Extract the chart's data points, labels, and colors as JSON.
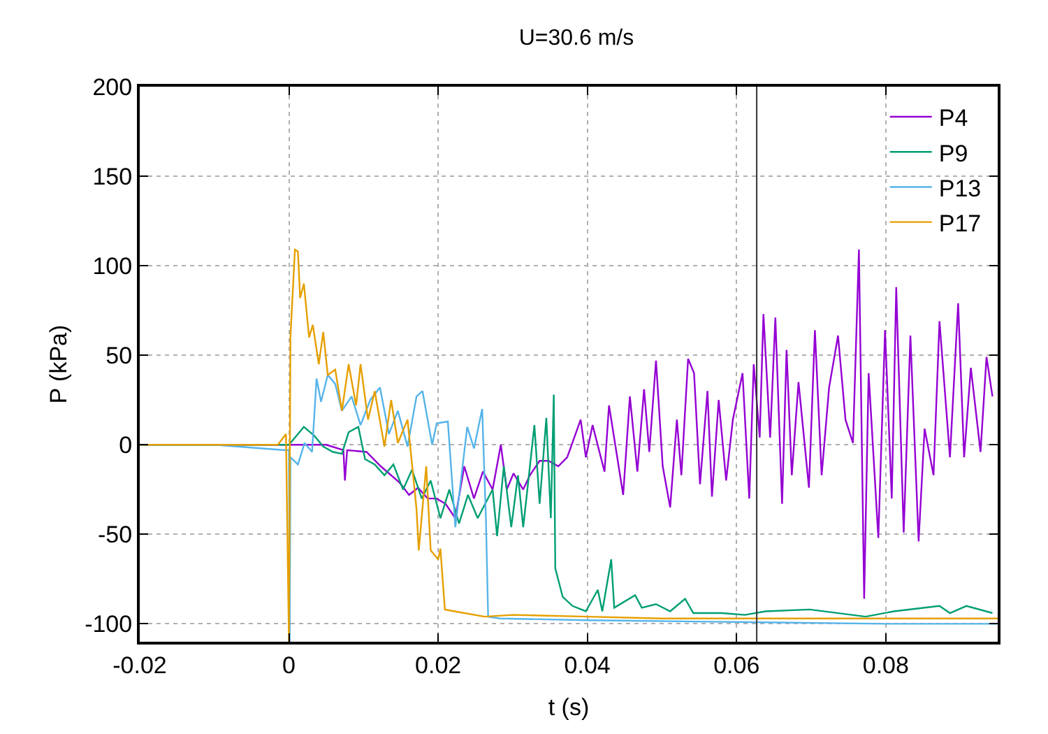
{
  "chart_data": {
    "type": "line",
    "title": "U=30.6 m/s",
    "xlabel": "t (s)",
    "ylabel": "P (kPa)",
    "xlim": [
      -0.02,
      0.095
    ],
    "xticks": [
      -0.02,
      0,
      0.02,
      0.04,
      0.06,
      0.08
    ],
    "ylim": [
      -110,
      200
    ],
    "yticks": [
      -100,
      -50,
      0,
      50,
      100,
      150,
      200
    ],
    "grid": true,
    "legend": "top right",
    "line_style": "solid",
    "ref_lines": [
      {
        "axis": "x",
        "value": 0.0627,
        "color": "#333333"
      }
    ],
    "series": [
      {
        "name": "P4",
        "color": "#9400d3",
        "x": [
          -0.02,
          -0.01,
          0,
          0.005,
          0.0073,
          0.0075,
          0.0078,
          0.0104,
          0.0123,
          0.0148,
          0.0161,
          0.0173,
          0.0186,
          0.0198,
          0.021,
          0.0223,
          0.0235,
          0.0248,
          0.026,
          0.0273,
          0.0284,
          0.0292,
          0.0301,
          0.0314,
          0.0323,
          0.0336,
          0.0348,
          0.0361,
          0.0373,
          0.0391,
          0.0398,
          0.0407,
          0.0423,
          0.0429,
          0.0448,
          0.0457,
          0.0467,
          0.0476,
          0.0483,
          0.0492,
          0.0501,
          0.0511,
          0.052,
          0.0526,
          0.0535,
          0.0543,
          0.0551,
          0.0561,
          0.0567,
          0.0576,
          0.0586,
          0.0595,
          0.0608,
          0.0617,
          0.0623,
          0.0631,
          0.0636,
          0.0645,
          0.0652,
          0.0661,
          0.0667,
          0.0674,
          0.0683,
          0.0697,
          0.0705,
          0.0714,
          0.0724,
          0.0736,
          0.0746,
          0.0756,
          0.0764,
          0.0771,
          0.0777,
          0.079,
          0.0799,
          0.0808,
          0.0814,
          0.0824,
          0.0833,
          0.0844,
          0.0852,
          0.0864,
          0.0872,
          0.0886,
          0.0897,
          0.0905,
          0.0914,
          0.0927,
          0.0935,
          0.0943
        ],
        "values": [
          0,
          0,
          0,
          0,
          -3,
          -20,
          -3,
          -4,
          -12,
          -21,
          -28,
          -24,
          -30,
          -30,
          -33,
          -41,
          -12,
          -30,
          -15,
          -25,
          0,
          -25,
          -16,
          -25,
          -17,
          -9,
          -9,
          -12,
          -7,
          14,
          -7,
          11,
          -15,
          22,
          -28,
          27,
          -15,
          31,
          -4,
          47,
          -12,
          -35,
          14,
          -17,
          48,
          40,
          -22,
          30,
          -29,
          25,
          -20,
          14,
          40,
          -30,
          45,
          4,
          73,
          4,
          71,
          -33,
          53,
          -17,
          35,
          -24,
          64,
          -17,
          32,
          61,
          14,
          1,
          109,
          -86,
          40,
          -52,
          64,
          -30,
          88,
          -49,
          61,
          -54,
          9,
          -17,
          69,
          -7,
          79,
          -7,
          43,
          -4,
          49,
          27
        ]
      },
      {
        "name": "P9",
        "color": "#009e73",
        "x": [
          -0.02,
          -0.01,
          0,
          0.0002,
          0.002,
          0.0034,
          0.0046,
          0.0059,
          0.0071,
          0.008,
          0.0093,
          0.0102,
          0.0115,
          0.0128,
          0.014,
          0.0153,
          0.0165,
          0.0178,
          0.019,
          0.0203,
          0.0215,
          0.0228,
          0.024,
          0.0253,
          0.0273,
          0.0279,
          0.0288,
          0.0298,
          0.0307,
          0.0314,
          0.0323,
          0.0329,
          0.0336,
          0.0345,
          0.0351,
          0.0355,
          0.0357,
          0.0367,
          0.038,
          0.0398,
          0.0414,
          0.042,
          0.0432,
          0.0436,
          0.0464,
          0.0473,
          0.0492,
          0.0511,
          0.0531,
          0.0542,
          0.058,
          0.0611,
          0.0639,
          0.0698,
          0.0773,
          0.0811,
          0.0872,
          0.0886,
          0.0908,
          0.0943
        ],
        "values": [
          0,
          0,
          0,
          1,
          10,
          5,
          -1,
          -4,
          -5,
          7,
          10,
          -8,
          -11,
          -17,
          -11,
          -25,
          -14,
          -30,
          -20,
          -41,
          -25,
          -44,
          -28,
          -41,
          -25,
          -51,
          -12,
          -46,
          -17,
          -46,
          -12,
          11,
          -33,
          15,
          -41,
          28,
          -69,
          -85,
          -90,
          -93,
          -81,
          -93,
          -64,
          -91,
          -84,
          -91,
          -89,
          -93,
          -86,
          -94,
          -94,
          -95,
          -93,
          -92,
          -96,
          -93,
          -90,
          -94,
          -90,
          -94
        ]
      },
      {
        "name": "P13",
        "color": "#56b4e9",
        "x": [
          -0.02,
          -0.01,
          -0.0005,
          0,
          0.0001,
          0.0002,
          0.0012,
          0.0021,
          0.0031,
          0.0037,
          0.0043,
          0.0052,
          0.0062,
          0.0071,
          0.0084,
          0.0096,
          0.0109,
          0.0122,
          0.0134,
          0.0146,
          0.0159,
          0.0171,
          0.0179,
          0.0192,
          0.0198,
          0.0213,
          0.0223,
          0.0239,
          0.0248,
          0.0259,
          0.0264,
          0.0267,
          0.0283,
          0.04,
          0.06,
          0.08,
          0.095
        ],
        "values": [
          0,
          0,
          -3,
          -3,
          -110,
          -7,
          -11,
          1,
          -4,
          37,
          24,
          39,
          34,
          19,
          27,
          11,
          25,
          32,
          6,
          19,
          -1,
          27,
          30,
          0,
          12,
          13,
          -46,
          10,
          -2,
          20,
          -41,
          -96,
          -97,
          -98,
          -99,
          -100,
          -100
        ]
      },
      {
        "name": "P17",
        "color": "#e69f00",
        "x": [
          -0.02,
          -0.01,
          -0.0015,
          -0.0004,
          0,
          0.0002,
          0.0008,
          0.0012,
          0.0015,
          0.002,
          0.0027,
          0.0032,
          0.004,
          0.0046,
          0.0052,
          0.0062,
          0.0071,
          0.008,
          0.009,
          0.0096,
          0.0106,
          0.0115,
          0.0128,
          0.0137,
          0.0146,
          0.0159,
          0.0171,
          0.0174,
          0.0184,
          0.019,
          0.02,
          0.0203,
          0.0209,
          0.0222,
          0.0262,
          0.03,
          0.04,
          0.05,
          0.06,
          0.07,
          0.08,
          0.095
        ],
        "values": [
          0,
          0,
          0,
          6,
          -110,
          60,
          109,
          108,
          82,
          90,
          60,
          67,
          45,
          63,
          39,
          42,
          19,
          45,
          22,
          45,
          14,
          30,
          -1,
          25,
          1,
          14,
          -36,
          -59,
          -12,
          -59,
          -64,
          -58,
          -92,
          -93,
          -96,
          -95,
          -96,
          -97,
          -97,
          -97,
          -97,
          -97
        ]
      }
    ]
  }
}
